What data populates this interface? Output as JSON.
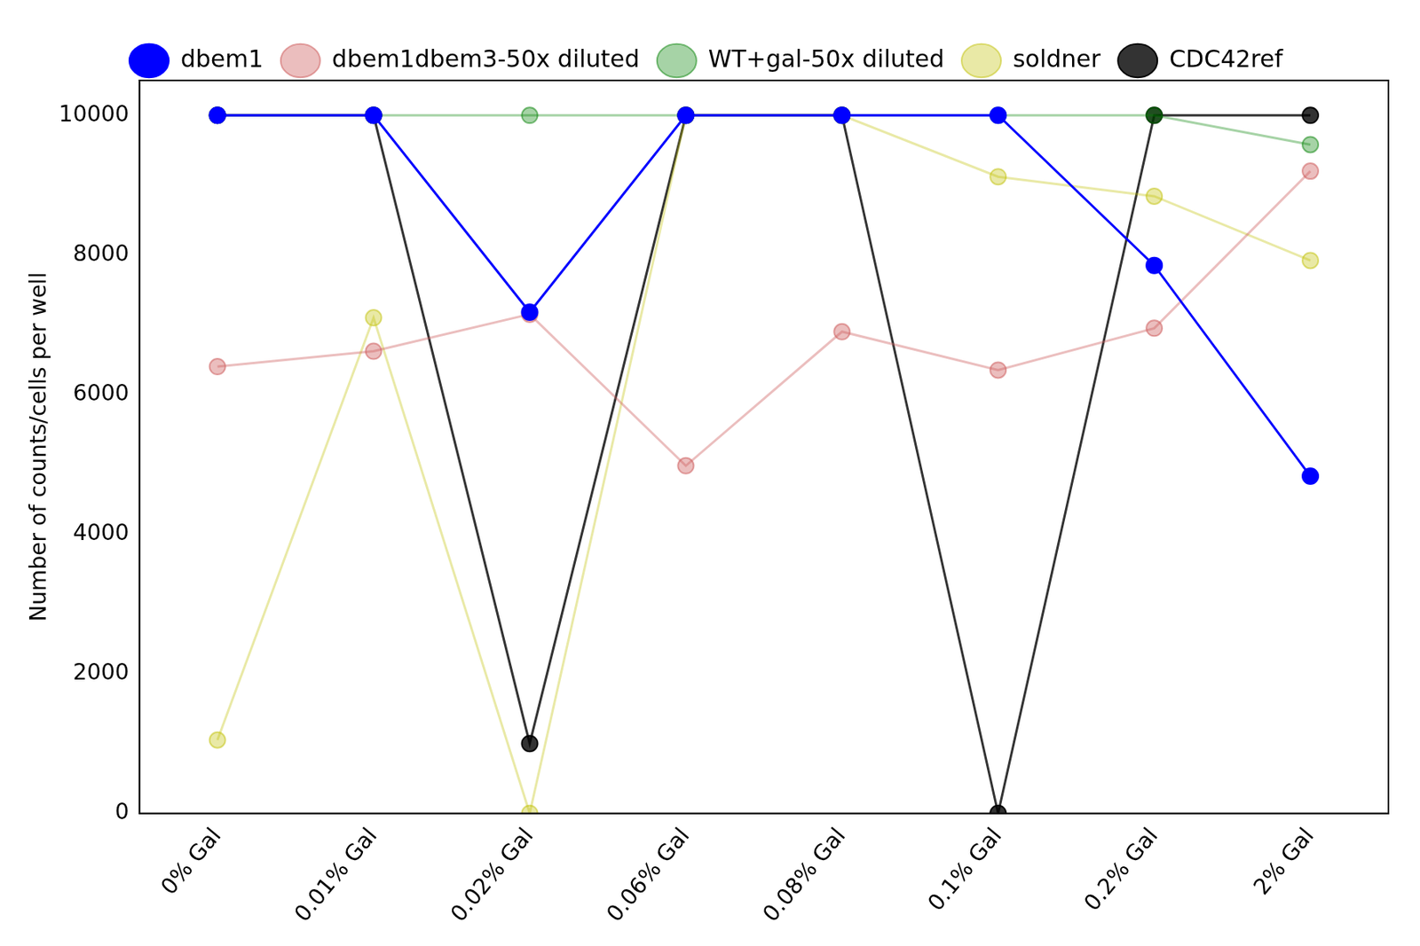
{
  "chart_data": {
    "type": "line",
    "categories": [
      "0% Gal",
      "0.01% Gal",
      "0.02% Gal",
      "0.06% Gal",
      "0.08% Gal",
      "0.1% Gal",
      "0.2% Gal",
      "2% Gal"
    ],
    "y_label": "Number of counts/cells per well",
    "series": [
      {
        "name": "dbem1",
        "color": "#0000ff",
        "marker": "circle",
        "line_style": "solid",
        "values": [
          10000,
          10000,
          7180,
          10000,
          10000,
          10000,
          7850,
          4830
        ]
      },
      {
        "name": "dbem1dbem3-50x diluted",
        "color": "#cd5c5c",
        "marker": "circle",
        "line_style": "solid",
        "values": [
          6400,
          6620,
          7150,
          4980,
          6900,
          6350,
          6950,
          9200
        ]
      },
      {
        "name": "WT+gal-50x diluted",
        "color": "#008000",
        "marker": "circle",
        "line_style": "solid",
        "values": [
          10000,
          10000,
          10000,
          10000,
          10000,
          10000,
          10000,
          9580
        ]
      },
      {
        "name": "soldner",
        "color": "#bfbf00",
        "marker": "circle",
        "line_style": "solid",
        "values": [
          1050,
          7100,
          0,
          10000,
          10000,
          9120,
          8840,
          7920
        ]
      },
      {
        "name": "CDC42ref",
        "color": "#000000",
        "marker": "circle",
        "line_style": "solid",
        "values": [
          10000,
          10000,
          1000,
          10000,
          10000,
          0,
          10000,
          10000
        ]
      }
    ],
    "ylim": [
      0,
      10500
    ],
    "yticks": [
      0,
      2000,
      4000,
      6000,
      8000,
      10000
    ],
    "grid": false,
    "legend": "top"
  }
}
